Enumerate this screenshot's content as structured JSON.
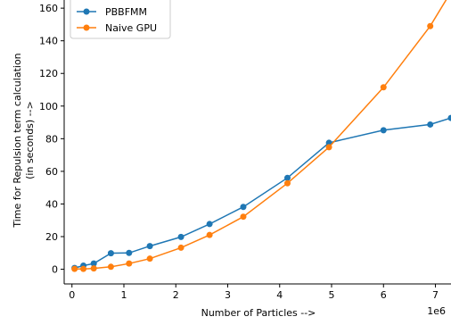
{
  "chart_data": {
    "type": "line",
    "xlabel": "Number of Particles -->",
    "ylabel_lines": [
      "Time for Repulsion term calculation",
      "(in seconds) -->"
    ],
    "x_offset_label": "1e6",
    "xlim": [
      -0.15,
      7.3
    ],
    "ylim": [
      -9,
      165
    ],
    "xticks": [
      0,
      1,
      2,
      3,
      4,
      5,
      6,
      7
    ],
    "xtick_labels": [
      "0",
      "1",
      "2",
      "3",
      "4",
      "5",
      "6",
      "7"
    ],
    "yticks": [
      0,
      20,
      40,
      60,
      80,
      100,
      120,
      140,
      160
    ],
    "ytick_labels": [
      "0",
      "20",
      "40",
      "60",
      "80",
      "100",
      "120",
      "140",
      "160"
    ],
    "grid": false,
    "legend_position": "top-left",
    "series": [
      {
        "name": "PBBFMM",
        "color": "#1f77b4",
        "x": [
          0.05,
          0.22,
          0.42,
          0.75,
          1.1,
          1.5,
          2.1,
          2.65,
          3.3,
          4.15,
          4.95,
          6.0,
          6.9,
          7.3
        ],
        "y": [
          0.8,
          2.2,
          3.5,
          9.8,
          10.0,
          14.2,
          19.8,
          27.7,
          38.2,
          56.0,
          77.5,
          85.2,
          88.7,
          92.7
        ]
      },
      {
        "name": "Naive GPU",
        "color": "#ff7f0e",
        "x": [
          0.05,
          0.22,
          0.42,
          0.75,
          1.1,
          1.5,
          2.1,
          2.65,
          3.3,
          4.15,
          4.95,
          6.0,
          6.9,
          7.3
        ],
        "y": [
          0.2,
          0.2,
          0.5,
          1.5,
          3.5,
          6.5,
          13.2,
          21.0,
          32.2,
          52.7,
          74.8,
          111.5,
          149.0,
          170.0
        ]
      }
    ]
  }
}
